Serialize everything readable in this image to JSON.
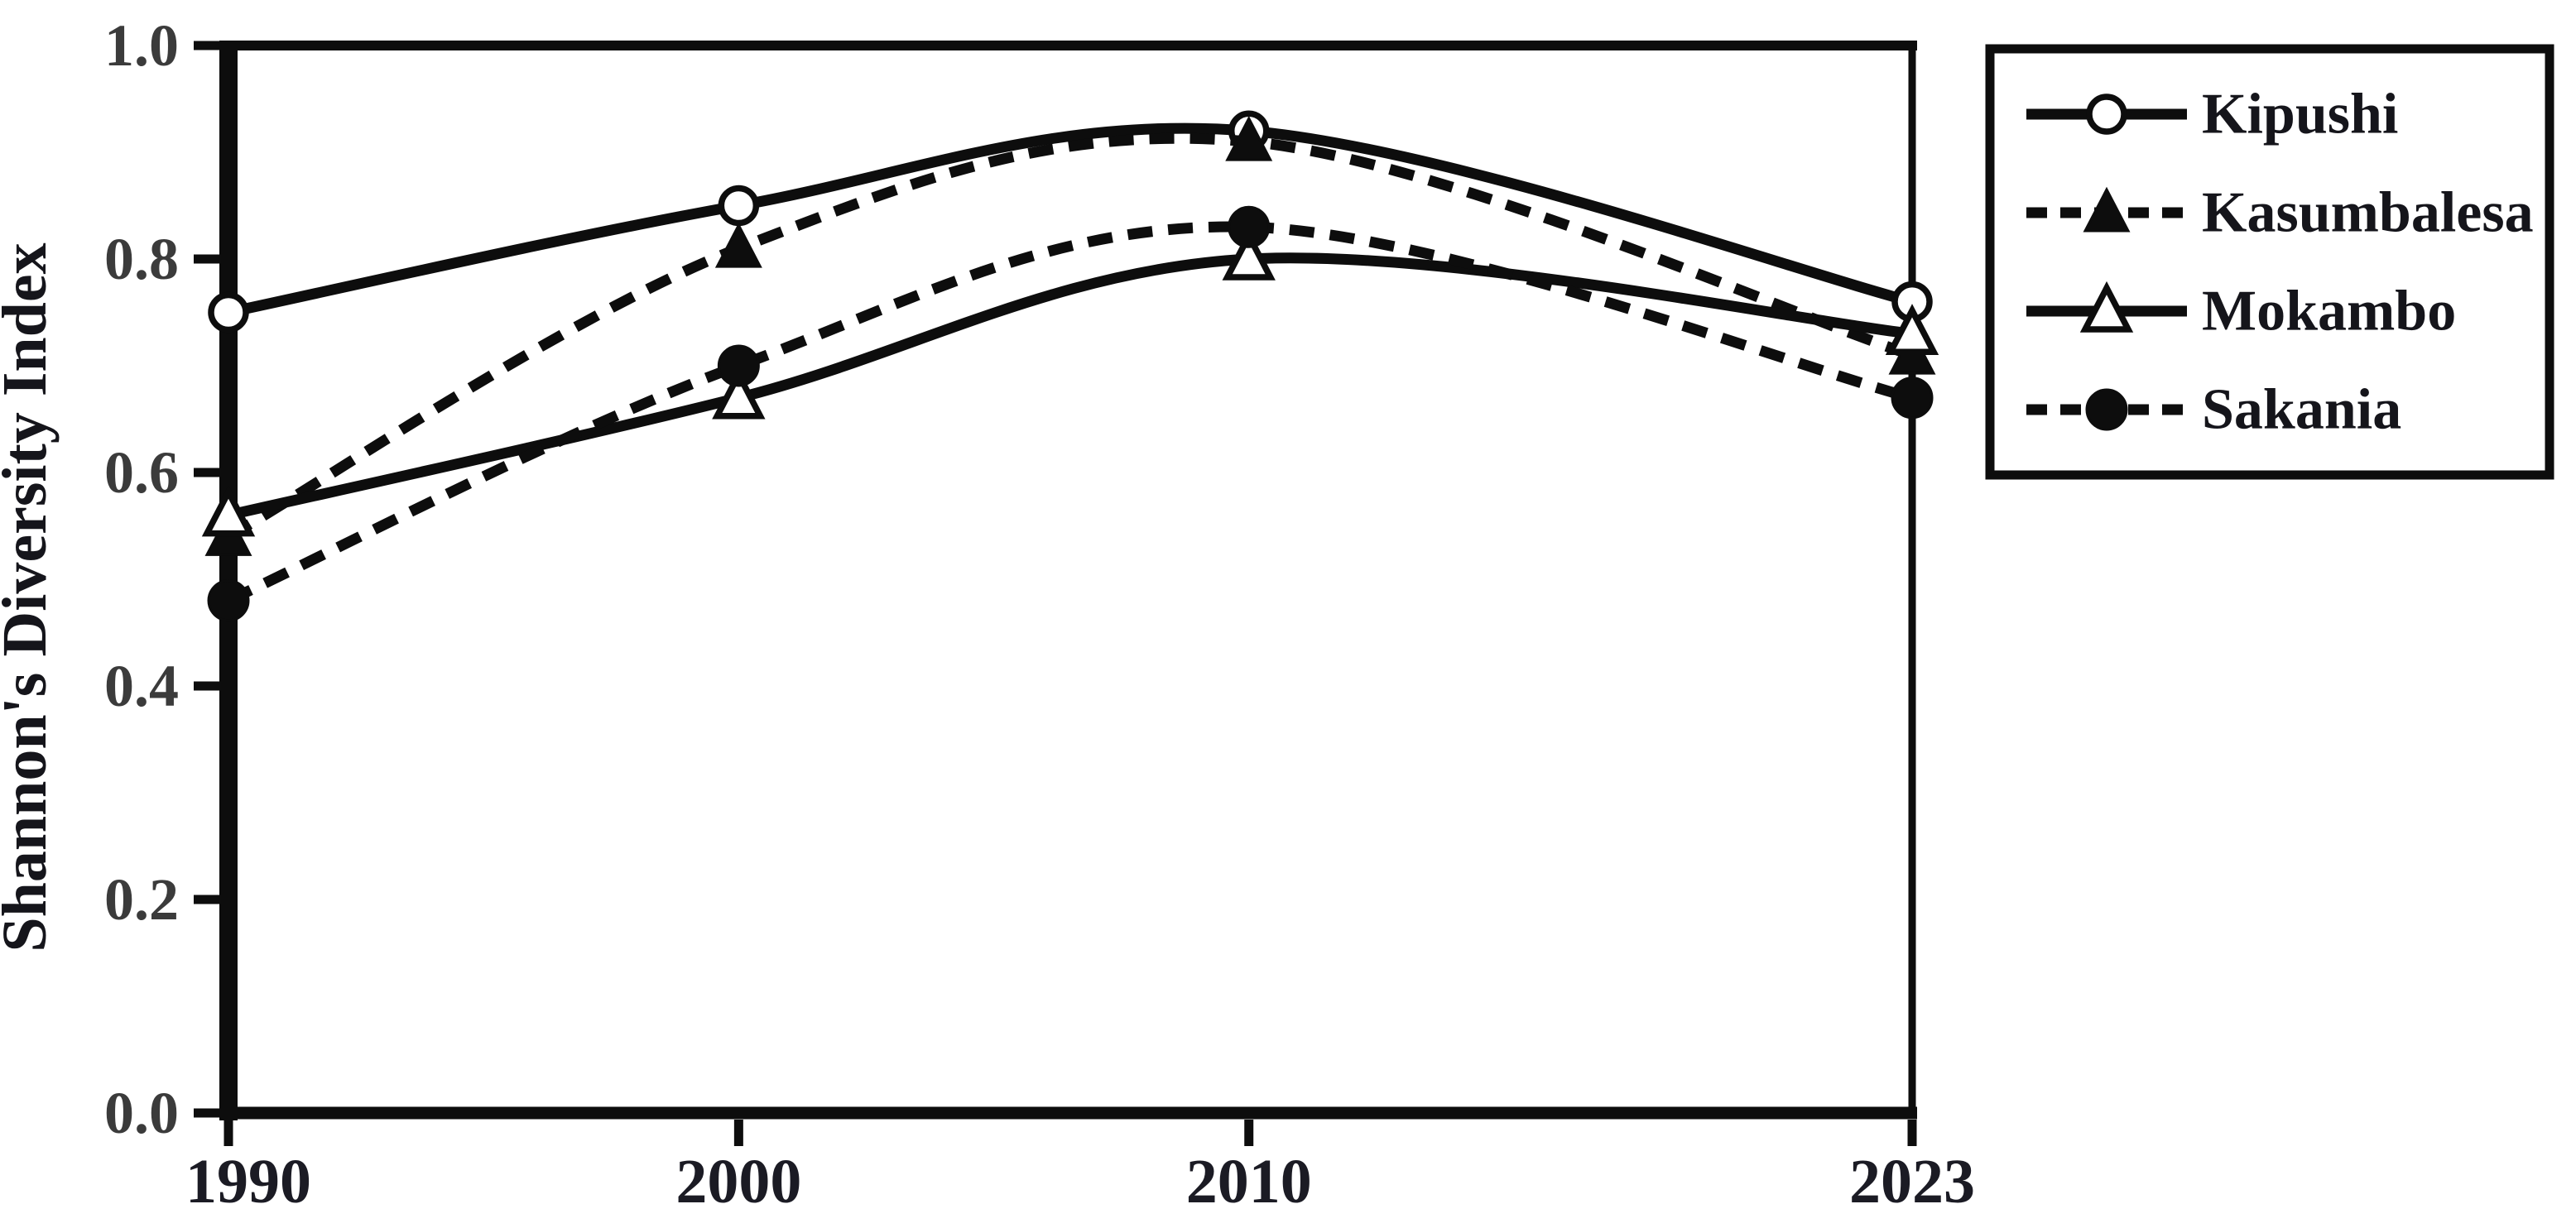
{
  "figure": {
    "background": "#ffffff",
    "ink_color": "#0d0d0d",
    "y_axis_title": "Shannon's Diversity Index"
  },
  "chart_data": {
    "type": "line",
    "title": "",
    "xlabel": "",
    "ylabel": "Shannon's Diversity Index",
    "x": [
      1990,
      2000,
      2010,
      2023
    ],
    "x_tick_labels": [
      "1990",
      "2000",
      "2010",
      "2023"
    ],
    "y_tick_labels": [
      "0.0",
      "0.2",
      "0.4",
      "0.6",
      "0.8",
      "1.0"
    ],
    "y_tick_values": [
      0.0,
      0.2,
      0.4,
      0.6,
      0.8,
      1.0
    ],
    "ylim": [
      0.0,
      1.0
    ],
    "grid": false,
    "line_smoothing": "spline",
    "legend_position": "outside-top-right",
    "series": [
      {
        "name": "Kipushi",
        "line_style": "solid",
        "marker": "circle-open",
        "values": [
          0.75,
          0.85,
          0.92,
          0.76
        ]
      },
      {
        "name": "Kasumbalesa",
        "line_style": "dashed",
        "marker": "triangle-filled",
        "values": [
          0.54,
          0.81,
          0.91,
          0.71
        ]
      },
      {
        "name": "Mokambo",
        "line_style": "solid",
        "marker": "triangle-open",
        "values": [
          0.56,
          0.67,
          0.8,
          0.73
        ]
      },
      {
        "name": "Sakania",
        "line_style": "dashed",
        "marker": "circle-filled",
        "values": [
          0.48,
          0.7,
          0.83,
          0.67
        ]
      }
    ]
  }
}
